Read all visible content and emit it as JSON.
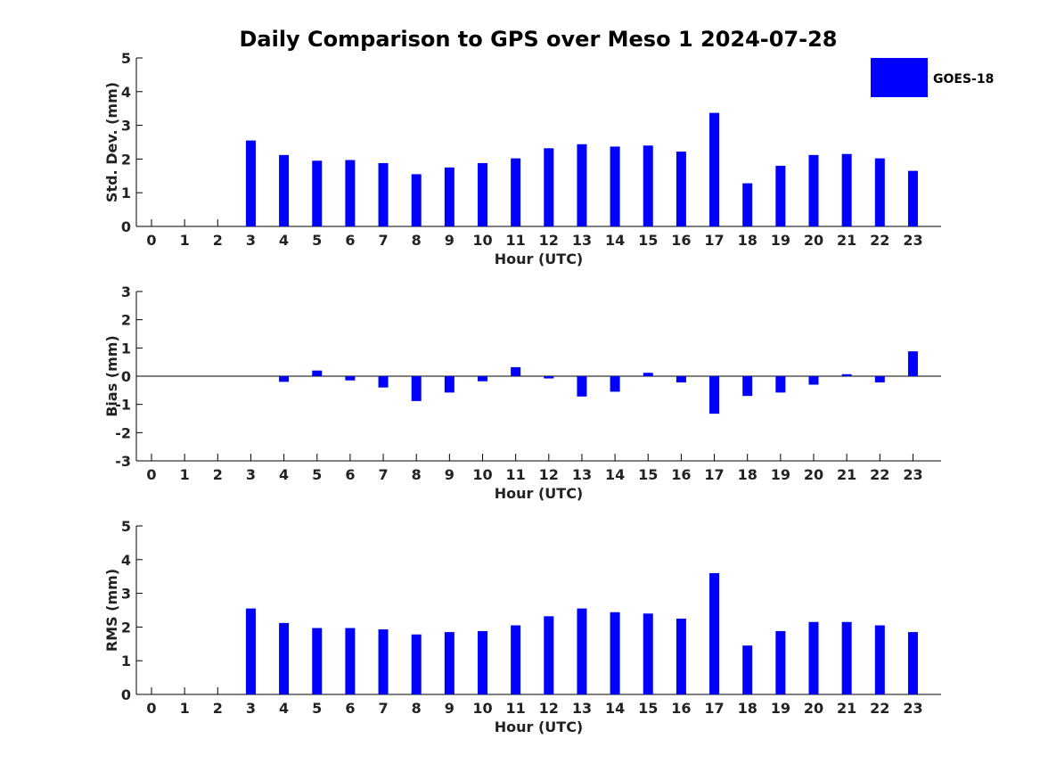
{
  "figure_title": "Daily Comparison to GPS over Meso 1 2024-07-28",
  "bar_color": "#0000ff",
  "legend": {
    "label": "GOES-18"
  },
  "chart_data": [
    {
      "type": "bar",
      "id": "std",
      "title": "",
      "xlabel": "Hour (UTC)",
      "ylabel": "Std. Dev. (mm)",
      "ylim": [
        0,
        5
      ],
      "yticks": [
        "0",
        "1",
        "2",
        "3",
        "4",
        "5"
      ],
      "categories": [
        "0",
        "1",
        "2",
        "3",
        "4",
        "5",
        "6",
        "7",
        "8",
        "9",
        "10",
        "11",
        "12",
        "13",
        "14",
        "15",
        "16",
        "17",
        "18",
        "19",
        "20",
        "21",
        "22",
        "23"
      ],
      "series": [
        {
          "name": "GOES-18",
          "values": [
            null,
            null,
            null,
            2.55,
            2.12,
            1.95,
            1.97,
            1.88,
            1.55,
            1.75,
            1.88,
            2.02,
            2.32,
            2.44,
            2.37,
            2.4,
            2.22,
            3.37,
            1.28,
            1.8,
            2.12,
            2.15,
            2.02,
            1.65
          ]
        }
      ]
    },
    {
      "type": "bar",
      "id": "bias",
      "title": "",
      "xlabel": "Hour (UTC)",
      "ylabel": "Bias (mm)",
      "ylim": [
        -3,
        3
      ],
      "yticks": [
        "-3",
        "-2",
        "-1",
        "0",
        "1",
        "2",
        "3"
      ],
      "categories": [
        "0",
        "1",
        "2",
        "3",
        "4",
        "5",
        "6",
        "7",
        "8",
        "9",
        "10",
        "11",
        "12",
        "13",
        "14",
        "15",
        "16",
        "17",
        "18",
        "19",
        "20",
        "21",
        "22",
        "23"
      ],
      "series": [
        {
          "name": "GOES-18",
          "values": [
            null,
            null,
            null,
            0.0,
            -0.2,
            0.2,
            -0.15,
            -0.4,
            -0.88,
            -0.58,
            -0.18,
            0.32,
            -0.08,
            -0.72,
            -0.55,
            0.12,
            -0.22,
            -1.33,
            -0.7,
            -0.58,
            -0.3,
            0.07,
            -0.22,
            0.88
          ]
        }
      ]
    },
    {
      "type": "bar",
      "id": "rms",
      "title": "",
      "xlabel": "Hour (UTC)",
      "ylabel": "RMS (mm)",
      "ylim": [
        0,
        5
      ],
      "yticks": [
        "0",
        "1",
        "2",
        "3",
        "4",
        "5"
      ],
      "categories": [
        "0",
        "1",
        "2",
        "3",
        "4",
        "5",
        "6",
        "7",
        "8",
        "9",
        "10",
        "11",
        "12",
        "13",
        "14",
        "15",
        "16",
        "17",
        "18",
        "19",
        "20",
        "21",
        "22",
        "23"
      ],
      "series": [
        {
          "name": "GOES-18",
          "values": [
            null,
            null,
            null,
            2.55,
            2.12,
            1.97,
            1.97,
            1.93,
            1.78,
            1.85,
            1.88,
            2.05,
            2.32,
            2.55,
            2.44,
            2.4,
            2.25,
            3.6,
            1.45,
            1.88,
            2.15,
            2.15,
            2.05,
            1.85
          ]
        }
      ]
    }
  ]
}
